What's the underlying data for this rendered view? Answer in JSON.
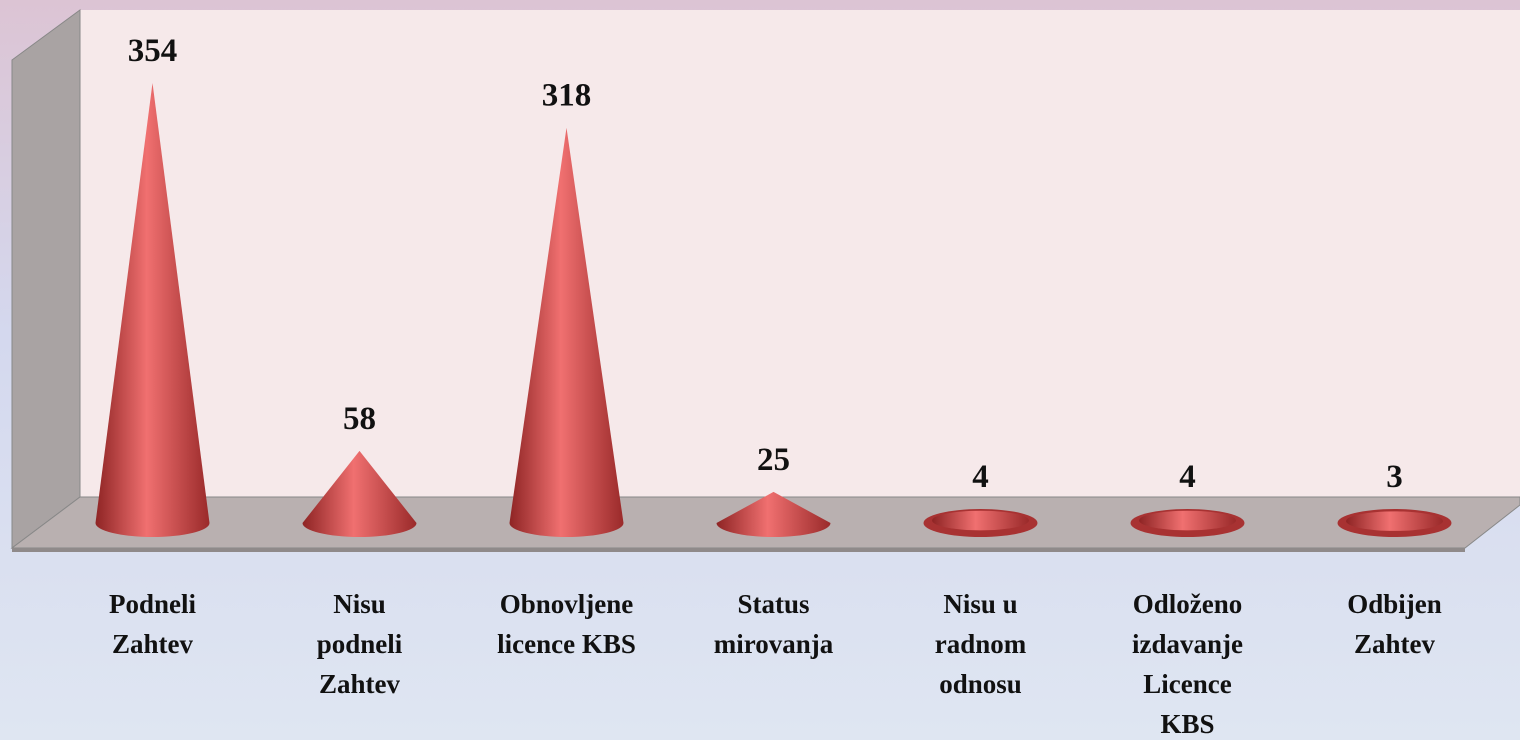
{
  "chart_data": {
    "type": "cone",
    "categories": [
      "Podneli\nZahtev",
      "Nisu\npodneli\nZahtev",
      "Obnovljene\nlicence KBS",
      "Status\nmirovanja",
      "Nisu u\nradnom\nodnosu",
      "Odloženo\nizdavanje\nLicence\nKBS",
      "Odbijen\nZahtev"
    ],
    "values": [
      354,
      58,
      318,
      25,
      4,
      4,
      3
    ],
    "color": "#d9534f"
  }
}
